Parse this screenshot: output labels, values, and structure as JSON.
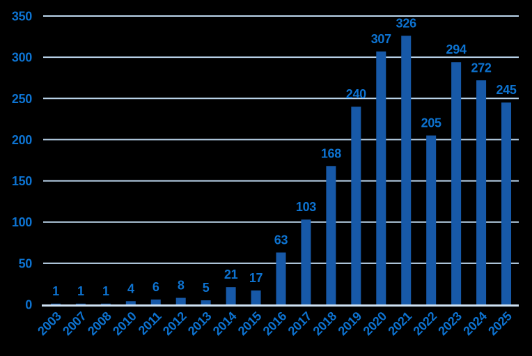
{
  "chart_data": {
    "type": "bar",
    "categories": [
      "2003",
      "2007",
      "2008",
      "2010",
      "2011",
      "2012",
      "2013",
      "2014",
      "2015",
      "2016",
      "2017",
      "2018",
      "2019",
      "2020",
      "2021",
      "2022",
      "2023",
      "2024",
      "2025"
    ],
    "values": [
      1,
      1,
      1,
      4,
      6,
      8,
      5,
      21,
      17,
      63,
      103,
      168,
      240,
      307,
      326,
      205,
      294,
      272,
      245
    ],
    "title": "",
    "xlabel": "",
    "ylabel": "",
    "ylim": [
      0,
      350
    ],
    "yticks": [
      0,
      50,
      100,
      150,
      200,
      250,
      300,
      350
    ],
    "grid": true,
    "legend": "none",
    "data_labels": true,
    "x_label_rotation_deg": -45
  },
  "colors": {
    "background": "#000000",
    "bar": "#1759A8",
    "label": "#0D73D1",
    "gridline": "#BDD7EE",
    "axis_line": "#CFE2F3"
  }
}
